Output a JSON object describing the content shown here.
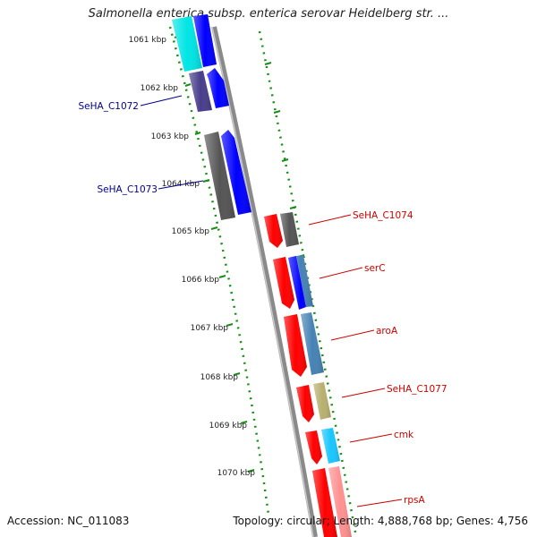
{
  "title": "Salmonella enterica subsp. enterica serovar Heidelberg str. ...",
  "footer": {
    "accession": "Accession: NC_011083",
    "summary": "Topology: circular; Length: 4,888,768 bp; Genes: 4,756"
  },
  "ticks": [
    "1061 kbp",
    "1062 kbp",
    "1063 kbp",
    "1064 kbp",
    "1065 kbp",
    "1066 kbp",
    "1067 kbp",
    "1068 kbp",
    "1069 kbp",
    "1070 kbp"
  ],
  "left_labels": [
    {
      "text": "SeHA_C1072",
      "color": "#00008b"
    },
    {
      "text": "SeHA_C1073",
      "color": "#00008b"
    }
  ],
  "right_labels": [
    {
      "text": "SeHA_C1074",
      "color": "#cc0000"
    },
    {
      "text": "serC",
      "color": "#cc0000"
    },
    {
      "text": "aroA",
      "color": "#cc0000"
    },
    {
      "text": "SeHA_C1077",
      "color": "#cc0000"
    },
    {
      "text": "cmk",
      "color": "#cc0000"
    },
    {
      "text": "rpsA",
      "color": "#cc0000"
    }
  ],
  "colors": {
    "backbone": "#8a8a8a",
    "tick_dots": "#1a8c1a",
    "gene_forward": "#ff0000",
    "gene_reverse": "#0000ff",
    "cog_cyan": "#00e5e5",
    "cog_purple": "#483d8b",
    "cog_gray": "#555555",
    "cog_steelblue": "#4682b4",
    "cog_khaki": "#b8b070",
    "cog_lightblue": "#19c6ff",
    "cog_pink": "#ff9090"
  }
}
